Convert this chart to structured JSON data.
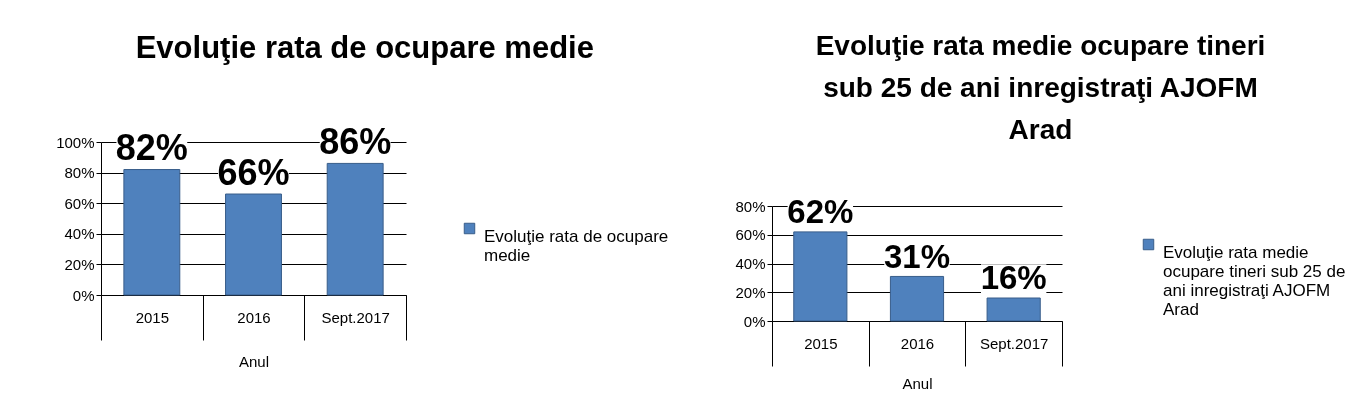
{
  "chart_data": [
    {
      "type": "bar",
      "title": "Evoluţie rata  de ocupare medie",
      "xlabel": "Anul",
      "categories": [
        "2015",
        "2016",
        "Sept.2017"
      ],
      "series": [
        {
          "name": "Evoluţie rata  de ocupare medie",
          "color": "#4f81bd",
          "values": [
            82,
            66,
            86
          ],
          "value_labels": [
            "82%",
            "66%",
            "86%"
          ]
        }
      ],
      "ylim": [
        0,
        100
      ],
      "yticks": [
        {
          "value": 0,
          "label": "0%"
        },
        {
          "value": 20,
          "label": "20%"
        },
        {
          "value": 40,
          "label": "40%"
        },
        {
          "value": 60,
          "label": "60%"
        },
        {
          "value": 80,
          "label": "80%"
        },
        {
          "value": 100,
          "label": "100%"
        }
      ],
      "grid": "y",
      "legend": "right"
    },
    {
      "type": "bar",
      "title": "Evoluţie rata medie ocupare tineri sub 25 de ani inregistraţi AJOFM Arad",
      "xlabel": "Anul",
      "categories": [
        "2015",
        "2016",
        "Sept.2017"
      ],
      "series": [
        {
          "name": "Evoluţie rata medie ocupare tineri sub 25 de ani inregistraţi AJOFM Arad",
          "color": "#4f81bd",
          "values": [
            62,
            31,
            16
          ],
          "value_labels": [
            "62%",
            "31%",
            "16%"
          ]
        }
      ],
      "ylim": [
        0,
        80
      ],
      "yticks": [
        {
          "value": 0,
          "label": "0%"
        },
        {
          "value": 20,
          "label": "20%"
        },
        {
          "value": 40,
          "label": "40%"
        },
        {
          "value": 60,
          "label": "60%"
        },
        {
          "value": 80,
          "label": "80%"
        }
      ],
      "grid": "y",
      "legend": "right"
    }
  ]
}
